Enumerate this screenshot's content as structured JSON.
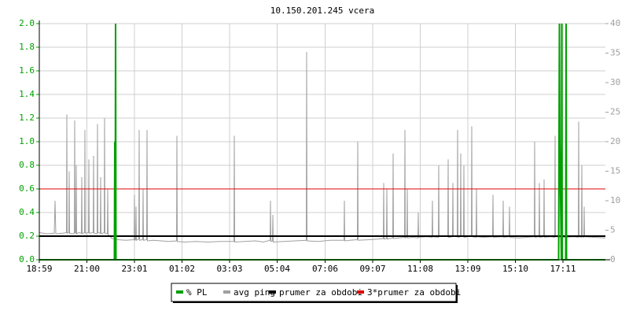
{
  "chart_data": {
    "type": "line",
    "title": "10.150.201.245 vcera",
    "xlim": [
      0,
      1440
    ],
    "xticks": [
      {
        "value": 0,
        "label": "18:59"
      },
      {
        "value": 121,
        "label": "21:00"
      },
      {
        "value": 242,
        "label": "23:01"
      },
      {
        "value": 363,
        "label": "01:02"
      },
      {
        "value": 484,
        "label": "03:03"
      },
      {
        "value": 605,
        "label": "05:04"
      },
      {
        "value": 727,
        "label": "07:06"
      },
      {
        "value": 848,
        "label": "09:07"
      },
      {
        "value": 969,
        "label": "11:08"
      },
      {
        "value": 1090,
        "label": "13:09"
      },
      {
        "value": 1211,
        "label": "15:10"
      },
      {
        "value": 1332,
        "label": "17:11"
      }
    ],
    "ylim": [
      0,
      2
    ],
    "yticks": [
      {
        "value": 0,
        "label": "0.0"
      },
      0.2,
      0.4,
      0.6,
      0.8,
      {
        "value": 1,
        "label": "1.0"
      },
      1.2,
      1.4,
      1.6,
      1.8,
      {
        "value": 2,
        "label": "2.0"
      }
    ],
    "y2lim": [
      0,
      40
    ],
    "y2ticks": [
      0,
      5,
      10,
      15,
      20,
      25,
      30,
      35,
      40
    ],
    "grid": true,
    "legend": "bottom",
    "series": [
      {
        "name": "% PL",
        "color": "#00a000",
        "axis": "y",
        "x": [
          0,
          191,
          192,
          193,
          194,
          195,
          1321,
          1322,
          1323,
          1324,
          1328,
          1329,
          1330,
          1339,
          1340,
          1341,
          1440
        ],
        "values": [
          0,
          0,
          1,
          0,
          2,
          0,
          0,
          1,
          2,
          1,
          0,
          2,
          0,
          0,
          2,
          0,
          0
        ]
      },
      {
        "name": "avg ping",
        "color": "#a0a0a0",
        "axis": "y2",
        "x": [
          0,
          20,
          38,
          40,
          42,
          60,
          69,
          70,
          71,
          75,
          76,
          77,
          84,
          89,
          90,
          91,
          93,
          94,
          95,
          100,
          107,
          108,
          109,
          115,
          116,
          117,
          125,
          126,
          127,
          137,
          138,
          139,
          147,
          148,
          149,
          155,
          156,
          157,
          165,
          166,
          167,
          173,
          174,
          175,
          185,
          200,
          220,
          241,
          242,
          243,
          245,
          246,
          247,
          253,
          254,
          255,
          263,
          264,
          265,
          273,
          274,
          275,
          290,
          310,
          330,
          349,
          350,
          351,
          370,
          400,
          430,
          460,
          495,
          496,
          497,
          520,
          550,
          570,
          587,
          588,
          589,
          593,
          594,
          595,
          620,
          650,
          679,
          680,
          681,
          710,
          740,
          775,
          776,
          777,
          790,
          809,
          810,
          811,
          840,
          860,
          875,
          876,
          877,
          883,
          884,
          885,
          899,
          900,
          901,
          915,
          929,
          930,
          931,
          935,
          936,
          937,
          950,
          963,
          964,
          965,
          985,
          999,
          1000,
          1001,
          1015,
          1016,
          1017,
          1030,
          1039,
          1040,
          1041,
          1051,
          1052,
          1053,
          1063,
          1064,
          1065,
          1071,
          1072,
          1073,
          1079,
          1080,
          1081,
          1090,
          1099,
          1100,
          1101,
          1111,
          1112,
          1113,
          1130,
          1153,
          1154,
          1155,
          1179,
          1180,
          1181,
          1195,
          1196,
          1197,
          1220,
          1240,
          1259,
          1260,
          1261,
          1271,
          1272,
          1273,
          1283,
          1284,
          1285,
          1300,
          1311,
          1312,
          1313,
          1340,
          1360,
          1371,
          1372,
          1373,
          1379,
          1380,
          1381,
          1385,
          1386,
          1387,
          1410,
          1440
        ],
        "values": [
          4.6,
          4.4,
          4.5,
          10,
          4.4,
          4.5,
          4.6,
          24.6,
          4.5,
          4.6,
          15,
          4.5,
          4.4,
          4.5,
          23.6,
          4.6,
          4.5,
          16,
          4.4,
          4.6,
          4.5,
          14,
          4.4,
          4.6,
          22,
          4.5,
          4.6,
          17,
          4.5,
          4.6,
          17.6,
          4.5,
          4.4,
          23,
          4.6,
          4.5,
          14,
          4.4,
          4.6,
          24,
          4.5,
          4.4,
          12,
          4.3,
          3.6,
          3.4,
          3.3,
          3.4,
          11,
          3.3,
          3.4,
          9,
          3.3,
          3.5,
          22,
          3.3,
          3.4,
          12,
          3.3,
          3.4,
          22,
          3.2,
          3.3,
          3.2,
          3.1,
          3.2,
          21,
          3.1,
          3.0,
          3.1,
          3.0,
          3.1,
          3.1,
          21,
          3.0,
          3.1,
          3.2,
          3.0,
          3.3,
          10,
          3.1,
          3.2,
          7.6,
          3.0,
          3.1,
          3.2,
          3.3,
          35.2,
          3.2,
          3.1,
          3.3,
          3.3,
          10,
          3.2,
          3.3,
          3.4,
          20,
          3.3,
          3.4,
          3.5,
          3.6,
          13,
          3.5,
          3.6,
          12,
          3.5,
          3.7,
          18,
          3.6,
          3.7,
          3.8,
          22,
          3.7,
          3.8,
          12,
          3.7,
          3.8,
          3.7,
          8,
          3.8,
          3.9,
          3.8,
          10,
          3.9,
          3.8,
          16,
          3.9,
          4.0,
          3.9,
          17,
          3.8,
          3.9,
          13,
          4.0,
          3.9,
          22,
          3.8,
          3.9,
          18,
          4.0,
          3.9,
          16,
          3.8,
          3.9,
          4.0,
          22.6,
          3.9,
          3.8,
          12,
          3.9,
          3.8,
          3.9,
          11,
          3.8,
          3.9,
          10,
          3.8,
          3.9,
          9,
          3.8,
          3.7,
          3.8,
          3.9,
          20,
          3.8,
          3.9,
          13,
          3.8,
          3.9,
          13.6,
          3.8,
          3.9,
          3.8,
          21,
          3.9,
          3.8,
          3.9,
          3.8,
          23.4,
          3.9,
          3.8,
          16,
          3.9,
          3.8,
          9,
          3.9,
          3.8,
          3.7
        ]
      },
      {
        "name": "prumer za obdobi",
        "color": "#000000",
        "axis": "y2",
        "value": 4
      },
      {
        "name": "3*prumer za obdobi",
        "color": "#e00000",
        "axis": "y2",
        "value": 12
      }
    ]
  }
}
